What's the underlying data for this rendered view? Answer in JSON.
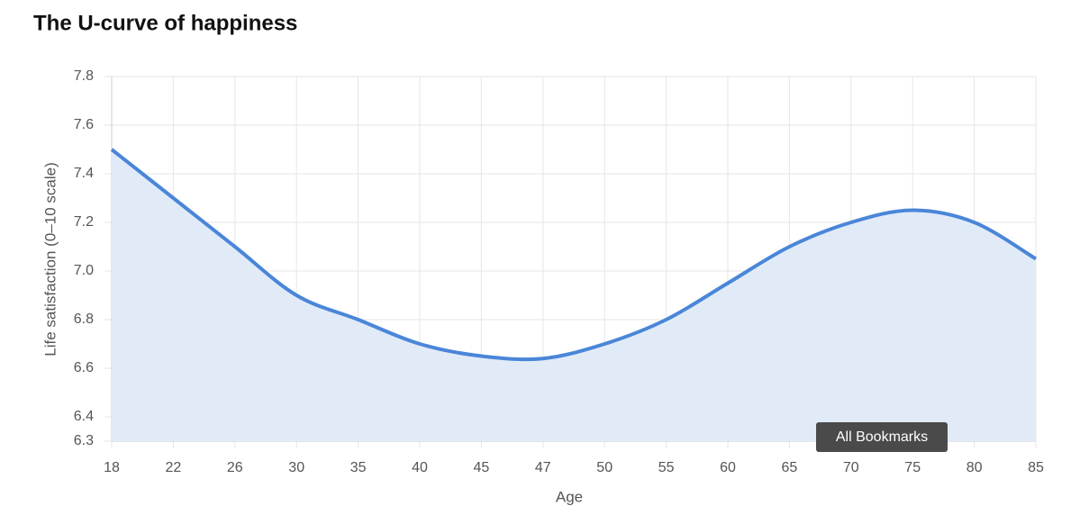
{
  "chart_data": {
    "type": "line",
    "title": "The U-curve of happiness",
    "x_label": "Age",
    "y_label": "Life satisfaction (0–10 scale)",
    "categories": [
      "18",
      "22",
      "26",
      "30",
      "35",
      "40",
      "45",
      "47",
      "50",
      "55",
      "60",
      "65",
      "70",
      "75",
      "80",
      "85"
    ],
    "series": [
      {
        "name": "Life satisfaction",
        "color": "#4a86d8",
        "fill": "#e1ebf8",
        "values": [
          7.5,
          7.3,
          7.1,
          6.9,
          6.8,
          6.7,
          6.65,
          6.64,
          6.7,
          6.8,
          6.95,
          7.1,
          7.2,
          7.25,
          7.2,
          7.05
        ]
      }
    ],
    "ylim": [
      6.3,
      7.8
    ],
    "yticks": [
      6.3,
      6.4,
      6.6,
      6.8,
      {
        "value": 7,
        "label": "7.0"
      },
      7.2,
      7.4,
      7.6,
      7.8
    ],
    "grid": true,
    "smooth": true,
    "area": true
  },
  "tooltip": "All Bookmarks"
}
